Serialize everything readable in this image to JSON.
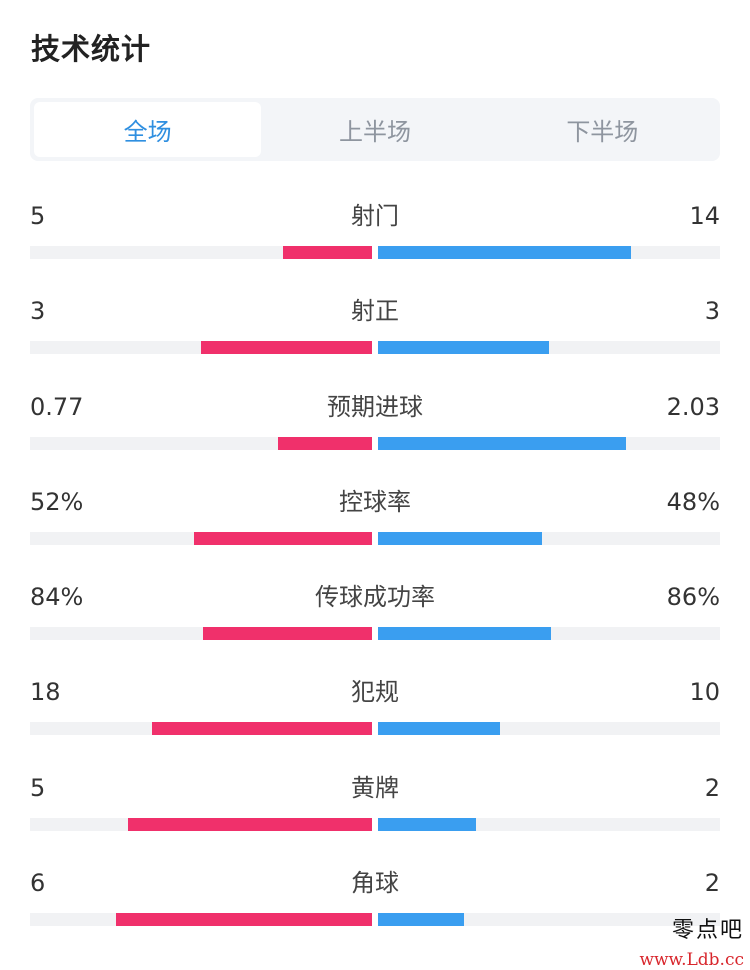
{
  "title": "技术统计",
  "tabs": [
    {
      "label": "全场",
      "active": true
    },
    {
      "label": "上半场",
      "active": false
    },
    {
      "label": "下半场",
      "active": false
    }
  ],
  "colors": {
    "home_bar": "#f0306b",
    "away_bar": "#3a9ef0",
    "active_tab": "#2f8fe0",
    "track": "#f1f2f4"
  },
  "stats": [
    {
      "label": "射门",
      "home": "5",
      "away": "14",
      "home_ratio": 0.26,
      "away_ratio": 0.74
    },
    {
      "label": "射正",
      "home": "3",
      "away": "3",
      "home_ratio": 0.5,
      "away_ratio": 0.5
    },
    {
      "label": "预期进球",
      "home": "0.77",
      "away": "2.03",
      "home_ratio": 0.275,
      "away_ratio": 0.725
    },
    {
      "label": "控球率",
      "home": "52%",
      "away": "48%",
      "home_ratio": 0.52,
      "away_ratio": 0.48
    },
    {
      "label": "传球成功率",
      "home": "84%",
      "away": "86%",
      "home_ratio": 0.494,
      "away_ratio": 0.506
    },
    {
      "label": "犯规",
      "home": "18",
      "away": "10",
      "home_ratio": 0.643,
      "away_ratio": 0.357
    },
    {
      "label": "黄牌",
      "home": "5",
      "away": "2",
      "home_ratio": 0.714,
      "away_ratio": 0.286
    },
    {
      "label": "角球",
      "home": "6",
      "away": "2",
      "home_ratio": 0.75,
      "away_ratio": 0.25
    }
  ],
  "watermark": {
    "name": "零点吧",
    "url": "www.Ldb.cc"
  }
}
